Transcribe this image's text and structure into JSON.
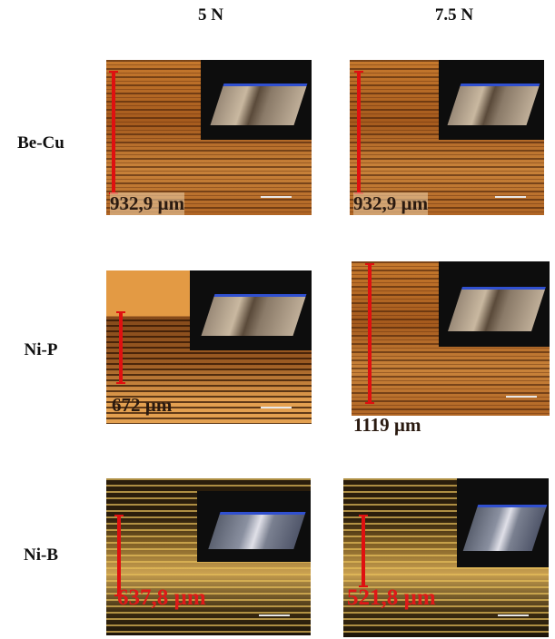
{
  "columns": [
    "5 N",
    "7.5 N"
  ],
  "rows": [
    {
      "label": "Be-Cu",
      "images": [
        {
          "measure": "932,9 µm"
        },
        {
          "measure": "932,9 µm"
        }
      ]
    },
    {
      "label": "Ni-P",
      "images": [
        {
          "measure": "672 µm"
        },
        {
          "measure": "1119 µm"
        }
      ]
    },
    {
      "label": "Ni-B",
      "images": [
        {
          "measure": "637,8 µm"
        },
        {
          "measure": "521,8 µm"
        }
      ]
    }
  ]
}
